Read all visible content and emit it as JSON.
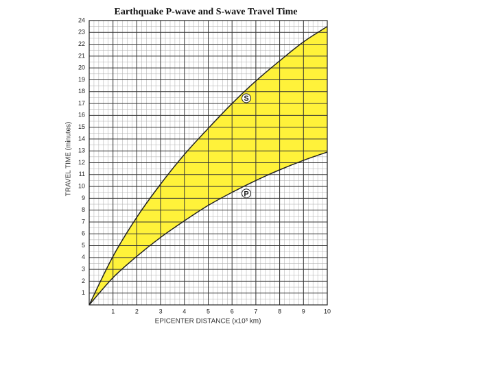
{
  "chart_data": {
    "type": "line",
    "title": "Earthquake P-wave and S-wave Travel Time",
    "x_label": "EPICENTER DISTANCE (x10³ km)",
    "y_label": "TRAVEL TIME (minutes)",
    "x": [
      0,
      1,
      2,
      3,
      4,
      5,
      6,
      7,
      8,
      9,
      10
    ],
    "series": [
      {
        "name": "S",
        "color": "#222222",
        "values": [
          0,
          4.1,
          7.4,
          10.2,
          12.7,
          14.9,
          17.0,
          18.9,
          20.6,
          22.2,
          23.5
        ]
      },
      {
        "name": "P",
        "color": "#222222",
        "values": [
          0,
          2.3,
          4.1,
          5.7,
          7.1,
          8.4,
          9.5,
          10.5,
          11.4,
          12.2,
          12.9
        ]
      }
    ],
    "fill_between_color": "#fff23a",
    "xlim": [
      0,
      10
    ],
    "ylim": [
      0,
      24
    ],
    "xticks": [
      1,
      2,
      3,
      4,
      5,
      6,
      7,
      8,
      9,
      10
    ],
    "yticks": [
      1,
      2,
      3,
      4,
      5,
      6,
      7,
      8,
      9,
      10,
      11,
      12,
      13,
      14,
      15,
      16,
      17,
      18,
      19,
      20,
      21,
      22,
      23,
      24
    ],
    "grid": true
  }
}
